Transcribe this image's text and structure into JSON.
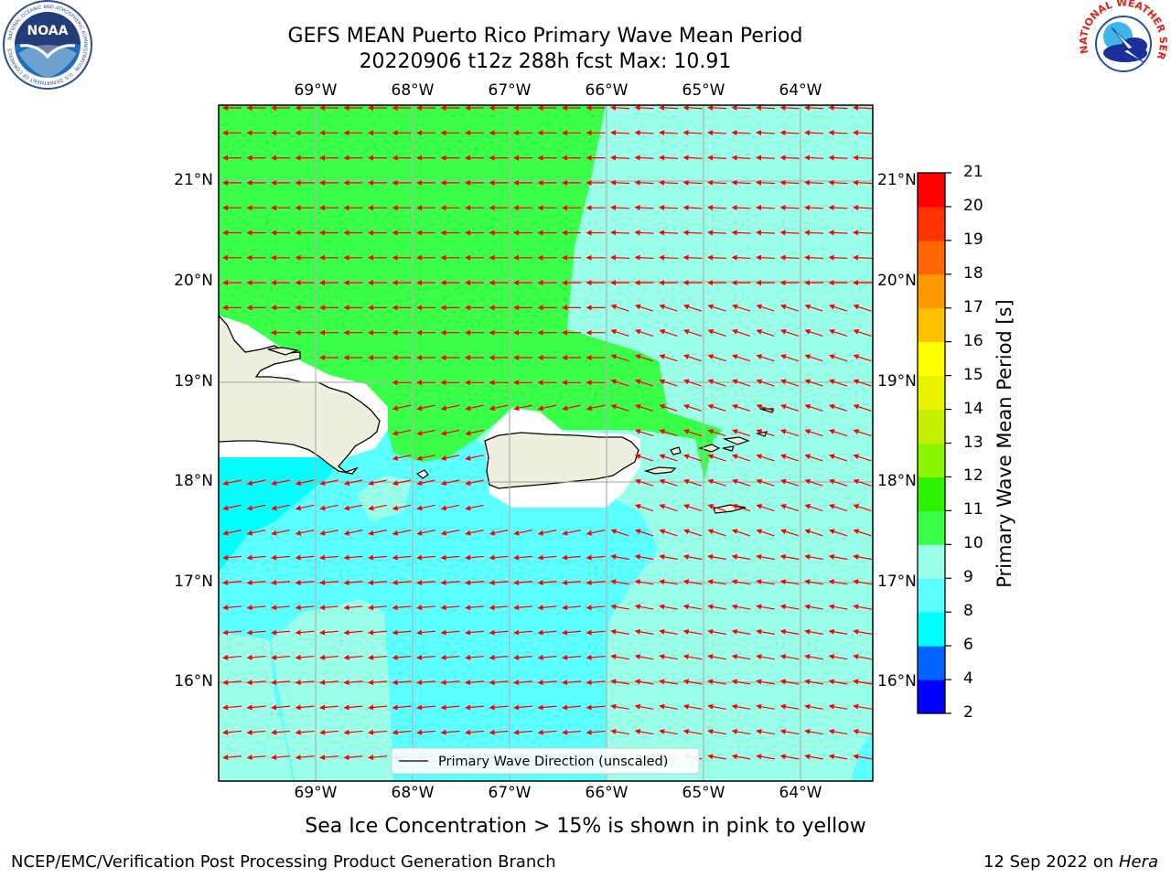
{
  "header": {
    "title_line1": "GEFS MEAN Puerto Rico Primary Wave Mean Period",
    "title_line2": "20220906 t12z 288h fcst   Max: 10.91"
  },
  "logos": {
    "left_name": "NOAA",
    "left_ring_text": "NATIONAL OCEANIC AND ATMOSPHERIC ADMINISTRATION · U.S. DEPARTMENT OF COMMERCE",
    "right_ring_text": "NATIONAL WEATHER SERVICE"
  },
  "map": {
    "lon_labels": [
      "69°W",
      "68°W",
      "67°W",
      "66°W",
      "65°W",
      "64°W"
    ],
    "lat_labels": [
      "21°N",
      "20°N",
      "19°N",
      "18°N",
      "17°N",
      "16°N"
    ],
    "legend_label": "Primary Wave Direction (unscaled)",
    "arrow_color": "#ff0000",
    "land_color": "#efefdf"
  },
  "colorbar": {
    "title": "Primary Wave Mean Period [s]",
    "ticks": [
      "2",
      "4",
      "6",
      "8",
      "9",
      "10",
      "11",
      "12",
      "13",
      "14",
      "15",
      "16",
      "17",
      "18",
      "19",
      "20",
      "21"
    ],
    "colors": [
      "#0000ff",
      "#0064ff",
      "#00ffff",
      "#5cffff",
      "#99ffe8",
      "#39ff48",
      "#2ef200",
      "#8cf500",
      "#c5f000",
      "#e9f200",
      "#ffff00",
      "#ffc000",
      "#ff9900",
      "#ff6600",
      "#ff3300",
      "#ff0000"
    ]
  },
  "subnote": "Sea Ice Concentration > 15% is shown in pink to yellow",
  "footer": {
    "left": "NCEP/EMC/Verification Post Processing Product Generation Branch",
    "right_prefix": "12 Sep 2022 on ",
    "right_host": "Hera"
  }
}
